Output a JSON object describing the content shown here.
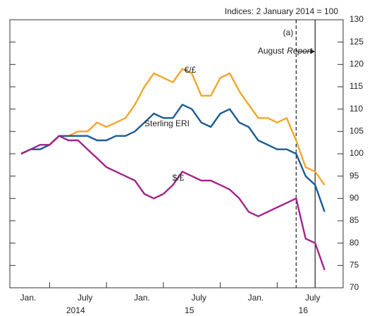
{
  "chart_data": {
    "type": "line",
    "subtitle": "Indices: 2 January 2014 = 100",
    "x": [
      "2014-01",
      "2014-02",
      "2014-03",
      "2014-04",
      "2014-05",
      "2014-06",
      "2014-07",
      "2014-08",
      "2014-09",
      "2014-10",
      "2014-11",
      "2014-12",
      "2015-01",
      "2015-02",
      "2015-03",
      "2015-04",
      "2015-05",
      "2015-06",
      "2015-07",
      "2015-08",
      "2015-09",
      "2015-10",
      "2015-11",
      "2015-12",
      "2016-01",
      "2016-02",
      "2016-03",
      "2016-04",
      "2016-05",
      "2016-06",
      "2016-07",
      "2016-08",
      "2016-09"
    ],
    "series": [
      {
        "name": "€/£",
        "color": "#f3a62a",
        "values": [
          100,
          101,
          101,
          102,
          104,
          104,
          105,
          105,
          107,
          106,
          107,
          108,
          111,
          115,
          118,
          117,
          116,
          119,
          118,
          113,
          113,
          117,
          118,
          114,
          111,
          108,
          108,
          107,
          108,
          103,
          97,
          96,
          93
        ]
      },
      {
        "name": "Sterling ERI",
        "color": "#1a5c95",
        "values": [
          100,
          101,
          101,
          102,
          104,
          104,
          104,
          104,
          103,
          103,
          104,
          104,
          105,
          107,
          109,
          108,
          108,
          111,
          110,
          107,
          106,
          109,
          110,
          107,
          106,
          103,
          102,
          101,
          101,
          100,
          95,
          93,
          87
        ]
      },
      {
        "name": "$/£",
        "color": "#a2238d",
        "values": [
          100,
          101,
          102,
          102,
          104,
          103,
          103,
          101,
          99,
          97,
          96,
          95,
          94,
          91,
          90,
          91,
          93,
          96,
          95,
          94,
          94,
          93,
          92,
          90,
          87,
          86,
          87,
          88,
          89,
          90,
          81,
          80,
          74
        ]
      }
    ],
    "ylim": [
      70,
      130
    ],
    "yticks": [
      70,
      75,
      80,
      85,
      90,
      95,
      100,
      105,
      110,
      115,
      120,
      125,
      130
    ],
    "xticks": [
      {
        "value": "2014-01",
        "label": "Jan."
      },
      {
        "value": "2014-07",
        "label": "July"
      },
      {
        "value": "2015-01",
        "label": "Jan."
      },
      {
        "value": "2015-07",
        "label": "July"
      },
      {
        "value": "2016-01",
        "label": "Jan."
      },
      {
        "value": "2016-07",
        "label": "July"
      }
    ],
    "xticks_minor": [
      "2014-04",
      "2014-10",
      "2015-04",
      "2015-10",
      "2016-04"
    ],
    "year_labels": [
      {
        "value": "2014-06",
        "label": "2014"
      },
      {
        "value": "2015-06",
        "label": "15"
      },
      {
        "value": "2016-06",
        "label": "16"
      }
    ],
    "annotations": [
      {
        "x": "2016-06",
        "label_parts": [
          "(a)"
        ],
        "style": "dashed"
      },
      {
        "x": "2016-08",
        "label_parts": [
          "August",
          "Report"
        ],
        "style": "solid"
      }
    ]
  }
}
